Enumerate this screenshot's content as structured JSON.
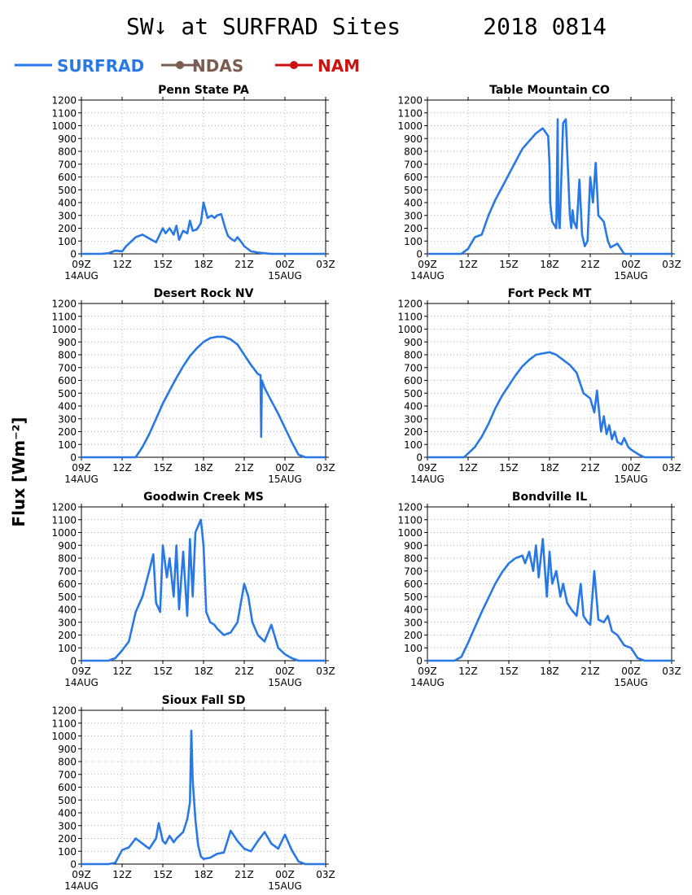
{
  "title": "SW↓ at SURFRAD Sites      2018 0814",
  "ylabel": "Flux [Wm⁻²]",
  "legend": [
    {
      "name": "SURFRAD",
      "color": "#2878e6",
      "marker": "none"
    },
    {
      "name": "NDAS",
      "color": "#7a5c50",
      "marker": "circle"
    },
    {
      "name": "NAM",
      "color": "#cc1111",
      "marker": "circle"
    }
  ],
  "axis": {
    "x_ticks": [
      {
        "main": "09Z",
        "sub": "14AUG"
      },
      {
        "main": "12Z",
        "sub": ""
      },
      {
        "main": "15Z",
        "sub": ""
      },
      {
        "main": "18Z",
        "sub": ""
      },
      {
        "main": "21Z",
        "sub": ""
      },
      {
        "main": "00Z",
        "sub": "15AUG"
      },
      {
        "main": "03Z",
        "sub": ""
      }
    ],
    "y_ticks": [
      0,
      100,
      200,
      300,
      400,
      500,
      600,
      700,
      800,
      900,
      1000,
      1100,
      1200
    ],
    "xlim": [
      0,
      18
    ],
    "ylim": [
      0,
      1200
    ]
  },
  "chart_data": [
    {
      "type": "line",
      "title": "Penn State PA",
      "series": [
        {
          "name": "SURFRAD",
          "x": [
            0,
            1.5,
            2,
            2.5,
            3,
            3.3,
            3.6,
            4,
            4.5,
            5,
            5.5,
            6,
            6.2,
            6.5,
            6.8,
            7,
            7.2,
            7.5,
            7.8,
            8,
            8.2,
            8.5,
            8.8,
            9,
            9.3,
            9.6,
            9.8,
            10,
            10.3,
            10.6,
            10.8,
            11,
            11.3,
            11.5,
            11.8,
            12,
            12.5,
            13,
            13.5,
            14,
            15,
            16,
            17,
            18
          ],
          "values": [
            0,
            0,
            5,
            25,
            20,
            60,
            90,
            130,
            150,
            120,
            90,
            200,
            160,
            200,
            150,
            220,
            110,
            180,
            160,
            260,
            180,
            190,
            240,
            400,
            280,
            300,
            280,
            300,
            310,
            200,
            140,
            120,
            100,
            130,
            90,
            60,
            20,
            10,
            5,
            0,
            0,
            0,
            0,
            0
          ]
        }
      ]
    },
    {
      "type": "line",
      "title": "Table Mountain CO",
      "series": [
        {
          "name": "SURFRAD",
          "x": [
            0,
            2.5,
            3,
            3.5,
            4,
            4.5,
            5,
            5.5,
            6,
            6.5,
            7,
            7.5,
            8,
            8.5,
            8.9,
            9,
            9.05,
            9.2,
            9.5,
            9.6,
            9.65,
            9.75,
            10,
            10.2,
            10.5,
            10.6,
            10.7,
            10.8,
            11,
            11.2,
            11.4,
            11.6,
            11.8,
            12,
            12.2,
            12.4,
            12.6,
            13,
            13.3,
            13.5,
            14,
            14.5,
            15,
            18
          ],
          "values": [
            0,
            0,
            40,
            130,
            150,
            300,
            420,
            520,
            620,
            720,
            820,
            880,
            940,
            980,
            920,
            700,
            400,
            250,
            200,
            1050,
            300,
            200,
            1020,
            1050,
            300,
            200,
            340,
            250,
            200,
            580,
            150,
            60,
            100,
            600,
            400,
            710,
            300,
            250,
            100,
            50,
            80,
            0,
            0,
            0
          ]
        }
      ]
    },
    {
      "type": "line",
      "title": "Desert Rock NV",
      "series": [
        {
          "name": "SURFRAD",
          "x": [
            0,
            4,
            4.5,
            5,
            5.5,
            6,
            6.5,
            7,
            7.5,
            8,
            8.5,
            9,
            9.5,
            10,
            10.5,
            11,
            11.5,
            12,
            12.5,
            13,
            13.2,
            13.25,
            13.3,
            13.5,
            14,
            14.5,
            15,
            15.5,
            16,
            16.5,
            17,
            18
          ],
          "values": [
            0,
            0,
            80,
            180,
            300,
            420,
            520,
            620,
            710,
            790,
            850,
            900,
            930,
            940,
            940,
            920,
            880,
            800,
            720,
            650,
            640,
            160,
            600,
            540,
            440,
            340,
            230,
            120,
            20,
            0,
            0,
            0
          ]
        }
      ]
    },
    {
      "type": "line",
      "title": "Fort Peck MT",
      "series": [
        {
          "name": "SURFRAD",
          "x": [
            0,
            2.7,
            3,
            3.5,
            4,
            4.5,
            5,
            5.5,
            6,
            6.5,
            7,
            7.5,
            8,
            8.5,
            9,
            9.5,
            10,
            10.5,
            11,
            11.5,
            12,
            12.3,
            12.5,
            12.8,
            13,
            13.2,
            13.4,
            13.6,
            13.8,
            14,
            14.3,
            14.5,
            14.8,
            15,
            15.3,
            15.6,
            16,
            16.5,
            18
          ],
          "values": [
            0,
            0,
            30,
            80,
            160,
            260,
            380,
            480,
            560,
            640,
            710,
            760,
            800,
            810,
            820,
            800,
            760,
            720,
            660,
            500,
            460,
            350,
            520,
            200,
            320,
            180,
            250,
            140,
            200,
            120,
            100,
            150,
            80,
            60,
            40,
            20,
            0,
            0,
            0
          ]
        }
      ]
    },
    {
      "type": "line",
      "title": "Goodwin Creek MS",
      "series": [
        {
          "name": "SURFRAD",
          "x": [
            0,
            2,
            2.5,
            3,
            3.5,
            4,
            4.5,
            5,
            5.3,
            5.5,
            5.8,
            6,
            6.3,
            6.5,
            6.8,
            7,
            7.2,
            7.5,
            7.8,
            8,
            8.2,
            8.4,
            8.6,
            8.8,
            9,
            9.2,
            9.5,
            9.8,
            10,
            10.5,
            11,
            11.5,
            12,
            12.3,
            12.6,
            13,
            13.5,
            14,
            14.5,
            15,
            15.5,
            16,
            17,
            18
          ],
          "values": [
            0,
            0,
            20,
            80,
            150,
            380,
            500,
            700,
            830,
            450,
            380,
            900,
            650,
            800,
            500,
            900,
            400,
            850,
            350,
            950,
            500,
            1000,
            1050,
            1100,
            900,
            380,
            300,
            280,
            250,
            200,
            220,
            300,
            600,
            500,
            300,
            200,
            150,
            280,
            100,
            50,
            20,
            0,
            0,
            0
          ]
        }
      ]
    },
    {
      "type": "line",
      "title": "Bondville IL",
      "series": [
        {
          "name": "SURFRAD",
          "x": [
            0,
            2,
            2.5,
            3,
            3.5,
            4,
            4.5,
            5,
            5.5,
            6,
            6.5,
            7,
            7.2,
            7.5,
            7.8,
            8,
            8.2,
            8.5,
            8.8,
            9,
            9.2,
            9.5,
            9.8,
            10,
            10.3,
            10.6,
            11,
            11.3,
            11.5,
            11.8,
            12,
            12.3,
            12.6,
            13,
            13.3,
            13.6,
            14,
            14.5,
            15,
            15.5,
            16,
            17,
            18
          ],
          "values": [
            0,
            0,
            30,
            140,
            260,
            380,
            490,
            600,
            690,
            760,
            800,
            820,
            760,
            850,
            700,
            900,
            650,
            950,
            500,
            850,
            600,
            700,
            500,
            600,
            450,
            400,
            350,
            600,
            350,
            300,
            280,
            700,
            320,
            300,
            350,
            230,
            200,
            120,
            100,
            20,
            0,
            0,
            0
          ]
        }
      ]
    },
    {
      "type": "line",
      "title": "Sioux Fall SD",
      "series": [
        {
          "name": "SURFRAD",
          "x": [
            0,
            2,
            2.5,
            3,
            3.5,
            4,
            4.5,
            5,
            5.5,
            5.7,
            6,
            6.2,
            6.5,
            6.8,
            7,
            7.5,
            7.8,
            8,
            8.1,
            8.2,
            8.4,
            8.6,
            8.8,
            9,
            9.5,
            10,
            10.5,
            11,
            11.5,
            12,
            12.5,
            13,
            13.5,
            14,
            14.5,
            15,
            15.5,
            16,
            16.5,
            18
          ],
          "values": [
            0,
            0,
            10,
            110,
            130,
            200,
            160,
            120,
            200,
            320,
            180,
            160,
            220,
            170,
            200,
            250,
            350,
            480,
            1040,
            650,
            350,
            150,
            60,
            40,
            50,
            80,
            90,
            260,
            180,
            120,
            100,
            180,
            250,
            160,
            120,
            230,
            110,
            20,
            0,
            0
          ]
        }
      ]
    }
  ]
}
